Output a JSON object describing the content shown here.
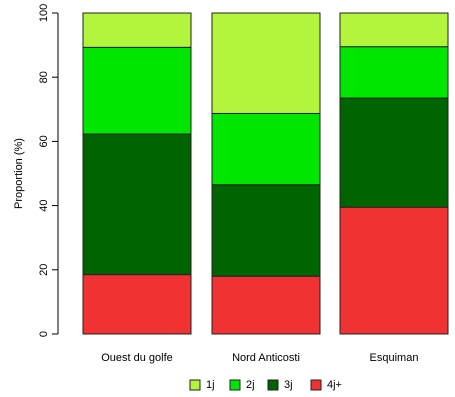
{
  "chart_data": {
    "type": "bar",
    "stacked": true,
    "categories": [
      "Ouest du golfe",
      "Nord Anticosti",
      "Esquiman"
    ],
    "series": [
      {
        "name": "4j+",
        "color": "#f03232",
        "values": [
          18.5,
          18,
          39.5
        ]
      },
      {
        "name": "3j",
        "color": "#006400",
        "values": [
          43.8,
          28.5,
          34
        ]
      },
      {
        "name": "2j",
        "color": "#00e600",
        "values": [
          27,
          22.2,
          16
        ]
      },
      {
        "name": "1j",
        "color": "#b2f53c",
        "values": [
          10.7,
          31.3,
          10.5
        ]
      }
    ],
    "ylabel": "Proportion (%)",
    "xlabel": "",
    "ylim": [
      0,
      100
    ],
    "yticks": [
      "0",
      "20",
      "40",
      "60",
      "80",
      "100"
    ],
    "legend_order": [
      "1j",
      "2j",
      "3j",
      "4j+"
    ],
    "legend_placement": "bottom",
    "grid": false
  }
}
